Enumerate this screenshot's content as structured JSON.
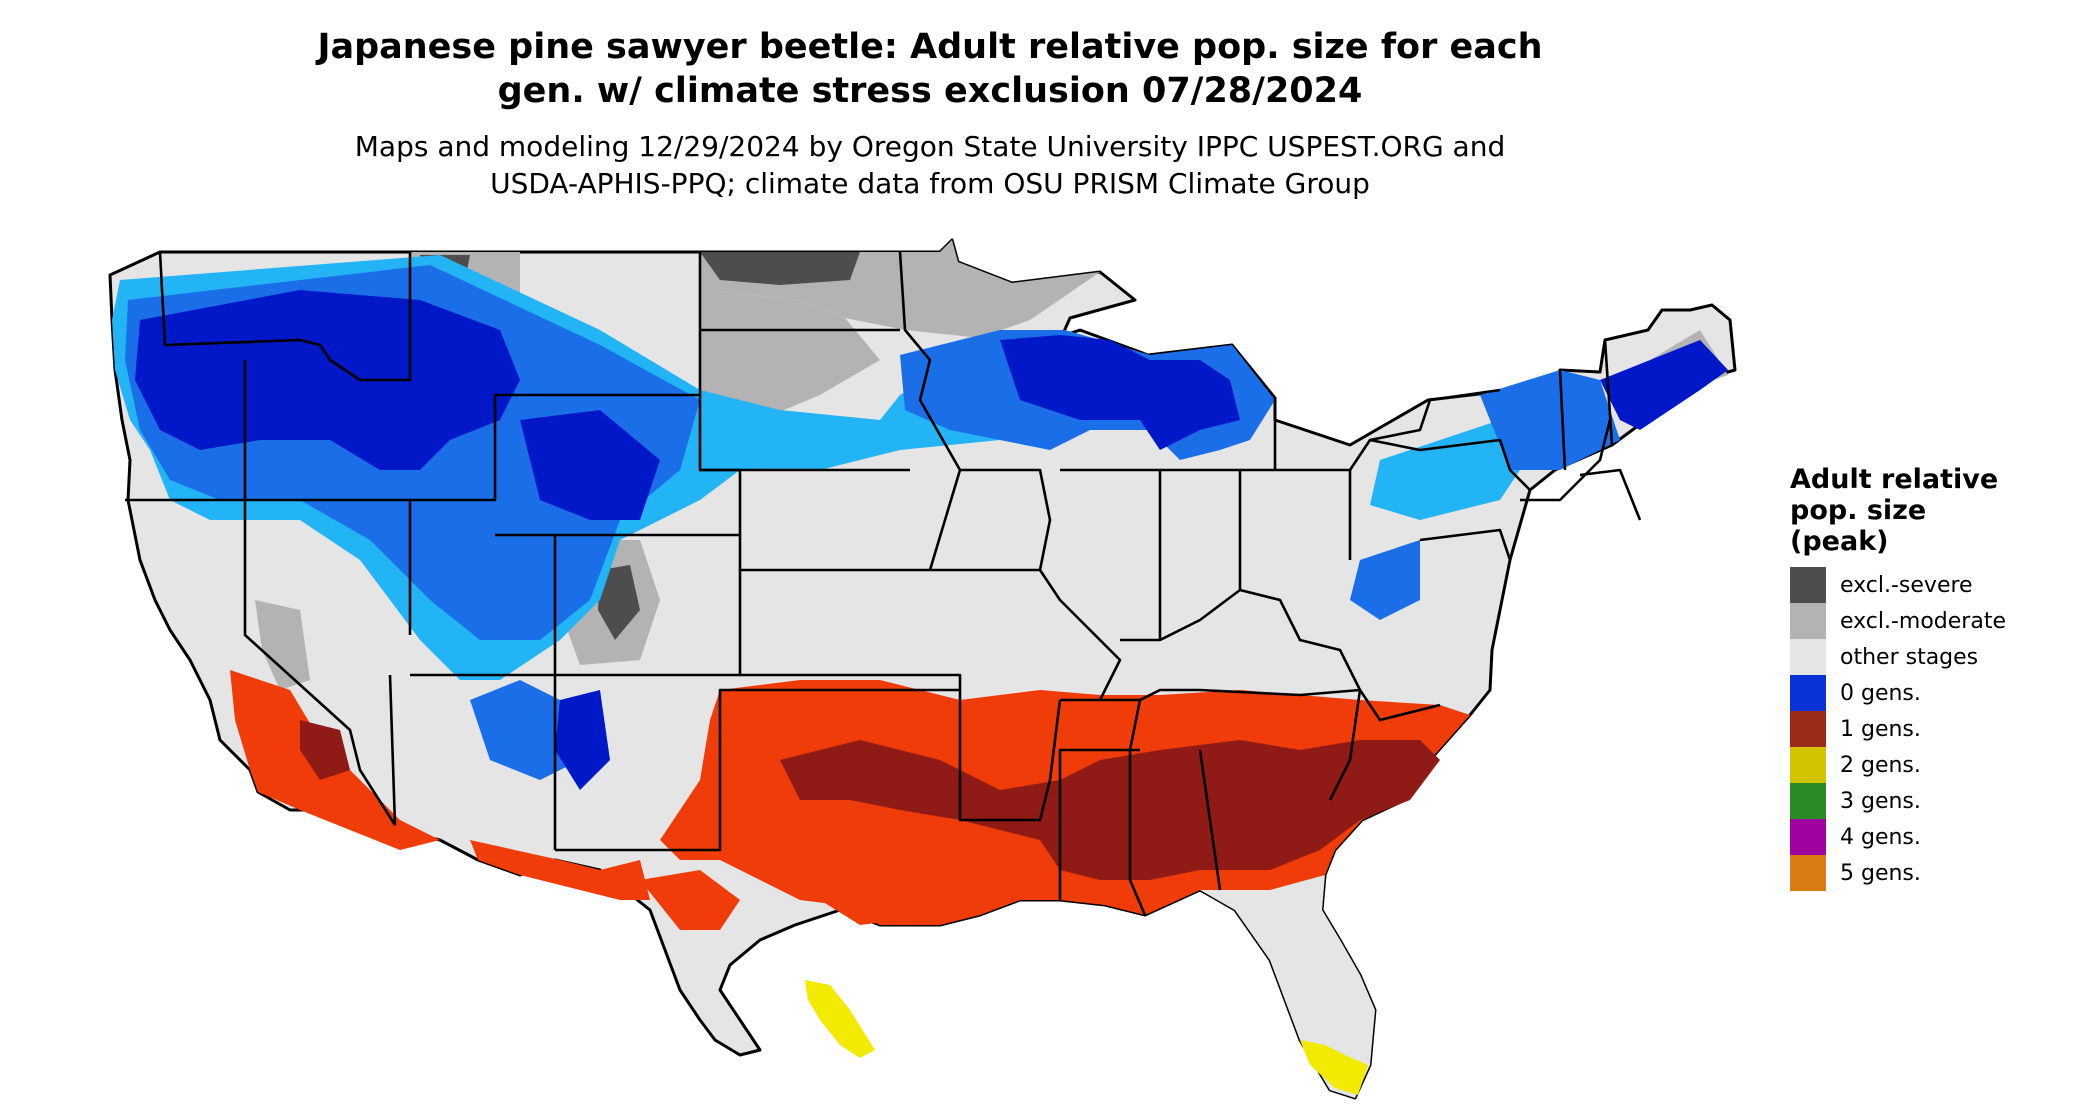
{
  "title_line1": "Japanese pine sawyer beetle: Adult relative pop. size for each",
  "title_line2": "gen. w/ climate stress exclusion 07/28/2024",
  "subtitle_line1": "Maps and modeling 12/29/2024 by Oregon State University IPPC USPEST.ORG and",
  "subtitle_line2": "USDA-APHIS-PPQ; climate data from OSU PRISM Climate Group",
  "legend": {
    "title_line1": "Adult relative",
    "title_line2": "pop. size",
    "title_line3": "(peak)",
    "items": [
      {
        "label": "excl.-severe",
        "color": "#4d4d4d"
      },
      {
        "label": "excl.-moderate",
        "color": "#b3b3b3"
      },
      {
        "label": "other stages",
        "color": "#e5e5e5"
      },
      {
        "label": "0 gens.",
        "color": "#0a32d8"
      },
      {
        "label": "1 gens.",
        "color": "#9c2a1a"
      },
      {
        "label": "2 gens.",
        "color": "#d4c300"
      },
      {
        "label": "3 gens.",
        "color": "#2a8a24"
      },
      {
        "label": "4 gens.",
        "color": "#a0009f"
      },
      {
        "label": "5 gens.",
        "color": "#d97a12"
      }
    ]
  },
  "map_colors": {
    "land": "#e5e5e5",
    "excl_moderate": "#b3b3b3",
    "excl_severe": "#4d4d4d",
    "blue_dark": "#0018c8",
    "blue_mid": "#1a6ee8",
    "blue_light": "#22b4f4",
    "red_dark": "#8f1a16",
    "red_orange": "#f03c08",
    "yellow": "#f2ea00",
    "border": "#000000"
  }
}
